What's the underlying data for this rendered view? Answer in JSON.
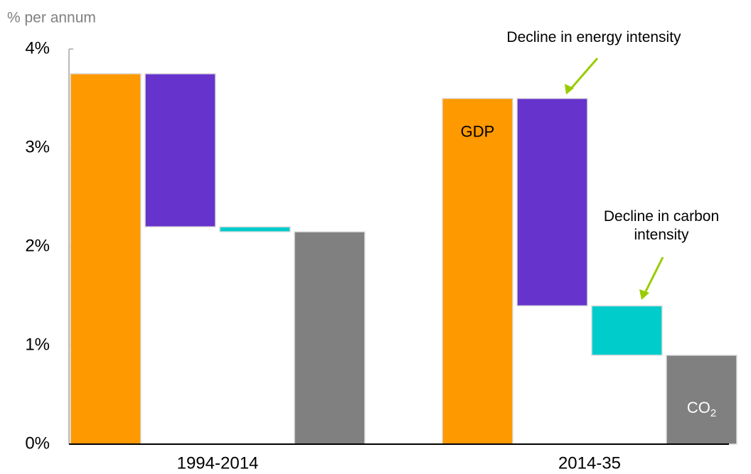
{
  "chart_data": {
    "type": "waterfall",
    "y_label": "% per annum",
    "categories": [
      "1994-2014",
      "2014-35"
    ],
    "series": [
      {
        "name": "GDP",
        "color": "#ff9900",
        "values": [
          3.75,
          3.5
        ]
      },
      {
        "name": "Decline in energy intensity",
        "color": "#6633cc",
        "values": [
          -1.55,
          -2.1
        ]
      },
      {
        "name": "Decline in carbon intensity",
        "color": "#00cccc",
        "values": [
          -0.05,
          -0.5
        ]
      },
      {
        "name": "CO2",
        "color": "#808080",
        "values": [
          2.15,
          0.9
        ],
        "total": true
      }
    ],
    "ylim": [
      0,
      4
    ],
    "yticks": [
      {
        "value": 0,
        "label": "0%"
      },
      {
        "value": 1,
        "label": "1%"
      },
      {
        "value": 2,
        "label": "2%"
      },
      {
        "value": 3,
        "label": "3%"
      },
      {
        "value": 4,
        "label": "4%"
      }
    ]
  }
}
